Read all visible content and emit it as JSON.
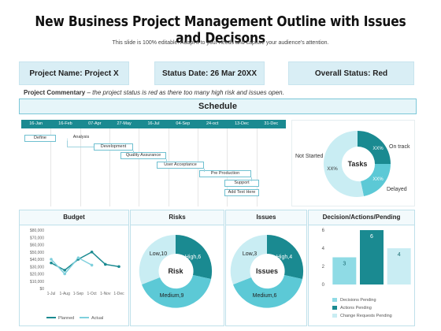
{
  "title": "New Business Project Management Outline with Issues and Decisons",
  "subtitle": "This slide is 100% editable. Adapt it to your needs and capture your audience's attention.",
  "info": {
    "project_name": "Project Name: Project X",
    "status_date": "Status Date: 26 Mar 20XX",
    "overall_status": "Overall Status: Red"
  },
  "commentary": {
    "label": "Project Commentary",
    "text": " – the project status is red as there too many high risk and issues open."
  },
  "schedule": {
    "title": "Schedule",
    "months": [
      "16-Jan",
      "16-Feb",
      "07-Apr",
      "27-May",
      "16-Jul",
      "04-Sep",
      "24-oct",
      "13-Dec",
      "31-Dec"
    ],
    "tasks": [
      "Define",
      "Analysis",
      "Development",
      "Quality Assurance",
      "User Acceptance",
      "Pre Production",
      "Support",
      "Add Text Here"
    ]
  },
  "tasks_donut": {
    "center": "Tasks",
    "on_track": "On track",
    "not_started": "Not Started",
    "delayed": "Delayed",
    "pct1": "XX%",
    "pct2": "XX%",
    "pct3": "XX%"
  },
  "budget": {
    "title": "Budget",
    "y_ticks": [
      "$80,000",
      "$70,000",
      "$60,000",
      "$50,000",
      "$40,000",
      "$30,000",
      "$20,000",
      "$10,000",
      "$0"
    ],
    "x_ticks": [
      "1-Jul",
      "1-Aug",
      "1-Sep",
      "1-Oct",
      "1-Nov",
      "1-Dec"
    ],
    "legend_planned": "Planned",
    "legend_actual": "Actual"
  },
  "risks": {
    "title": "Risks",
    "center": "Risk",
    "low": "Low,10",
    "high": "High,6",
    "medium": "Medium,9"
  },
  "issues": {
    "title": "Issues",
    "center": "Issues",
    "low": "Low,3",
    "high": "High,4",
    "medium": "Medium,6"
  },
  "decisions": {
    "title": "Decision/Actions/Pending",
    "legend1": "Decisions Pending",
    "legend2": "Actions Pending",
    "legend3": "Change Requests Pending"
  },
  "chart_data": [
    {
      "type": "line",
      "title": "Budget",
      "categories": [
        "1-Jul",
        "1-Aug",
        "1-Sep",
        "1-Oct",
        "1-Nov",
        "1-Dec"
      ],
      "ylim": [
        0,
        80000
      ],
      "series": [
        {
          "name": "Planned",
          "values": [
            35000,
            25000,
            40000,
            50000,
            33000,
            30000
          ]
        },
        {
          "name": "Actual",
          "values": [
            40000,
            20000,
            42000,
            32000,
            null,
            null
          ]
        }
      ]
    },
    {
      "type": "bar",
      "title": "Decision/Actions/Pending",
      "categories": [
        "Decisions Pending",
        "Actions Pending",
        "Change Requests Pending"
      ],
      "values": [
        3,
        6,
        4
      ],
      "ylim": [
        0,
        6
      ],
      "y_ticks": [
        0,
        2,
        4,
        6
      ]
    },
    {
      "type": "pie",
      "title": "Risks",
      "categories": [
        "High",
        "Medium",
        "Low"
      ],
      "values": [
        6,
        9,
        10
      ]
    },
    {
      "type": "pie",
      "title": "Issues",
      "categories": [
        "High",
        "Medium",
        "Low"
      ],
      "values": [
        4,
        6,
        3
      ]
    }
  ],
  "colors": {
    "teal_dark": "#1a8a91",
    "teal_mid": "#5cc9d6",
    "teal_light": "#c9edf3",
    "box_bg": "#d9eef5"
  }
}
